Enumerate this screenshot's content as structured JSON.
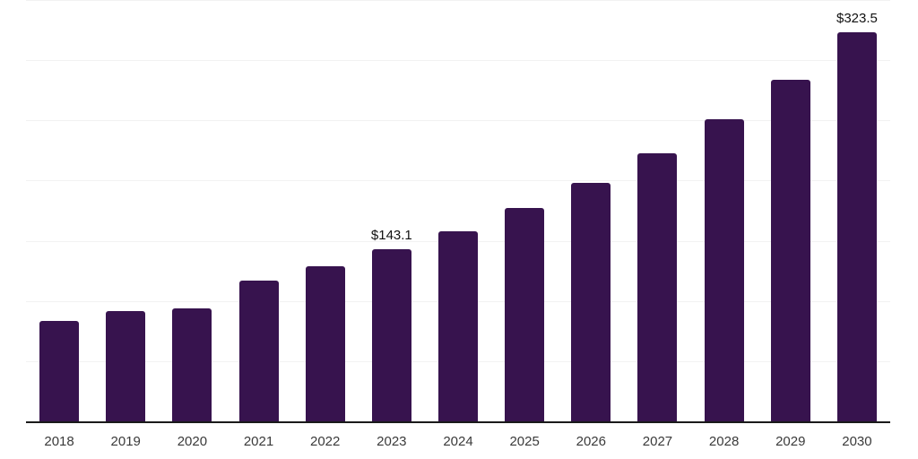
{
  "chart": {
    "background_color": "#ffffff",
    "bar_color": "#37134e",
    "axis_color": "#1a1a1a",
    "gridline_color": "#f2f2f2",
    "value_label_color": "#111111",
    "tick_label_color": "#3a3a3a"
  },
  "chart_data": {
    "type": "bar",
    "title": "",
    "xlabel": "",
    "ylabel": "",
    "categories": [
      "2018",
      "2019",
      "2020",
      "2021",
      "2022",
      "2023",
      "2024",
      "2025",
      "2026",
      "2027",
      "2028",
      "2029",
      "2030"
    ],
    "values": [
      83.5,
      91.4,
      94.1,
      116.9,
      128.8,
      143.1,
      157.8,
      177.1,
      198.1,
      222.6,
      250.6,
      284.0,
      323.5
    ],
    "data_labels": [
      "",
      "",
      "",
      "",
      "",
      "$143.1",
      "",
      "",
      "",
      "",
      "",
      "",
      "$323.5"
    ],
    "ylim": [
      0,
      350
    ],
    "gridline_step": 50,
    "grid": "horizontal-only",
    "y_axis_tick_labels_visible": false,
    "legend_position": "none"
  }
}
